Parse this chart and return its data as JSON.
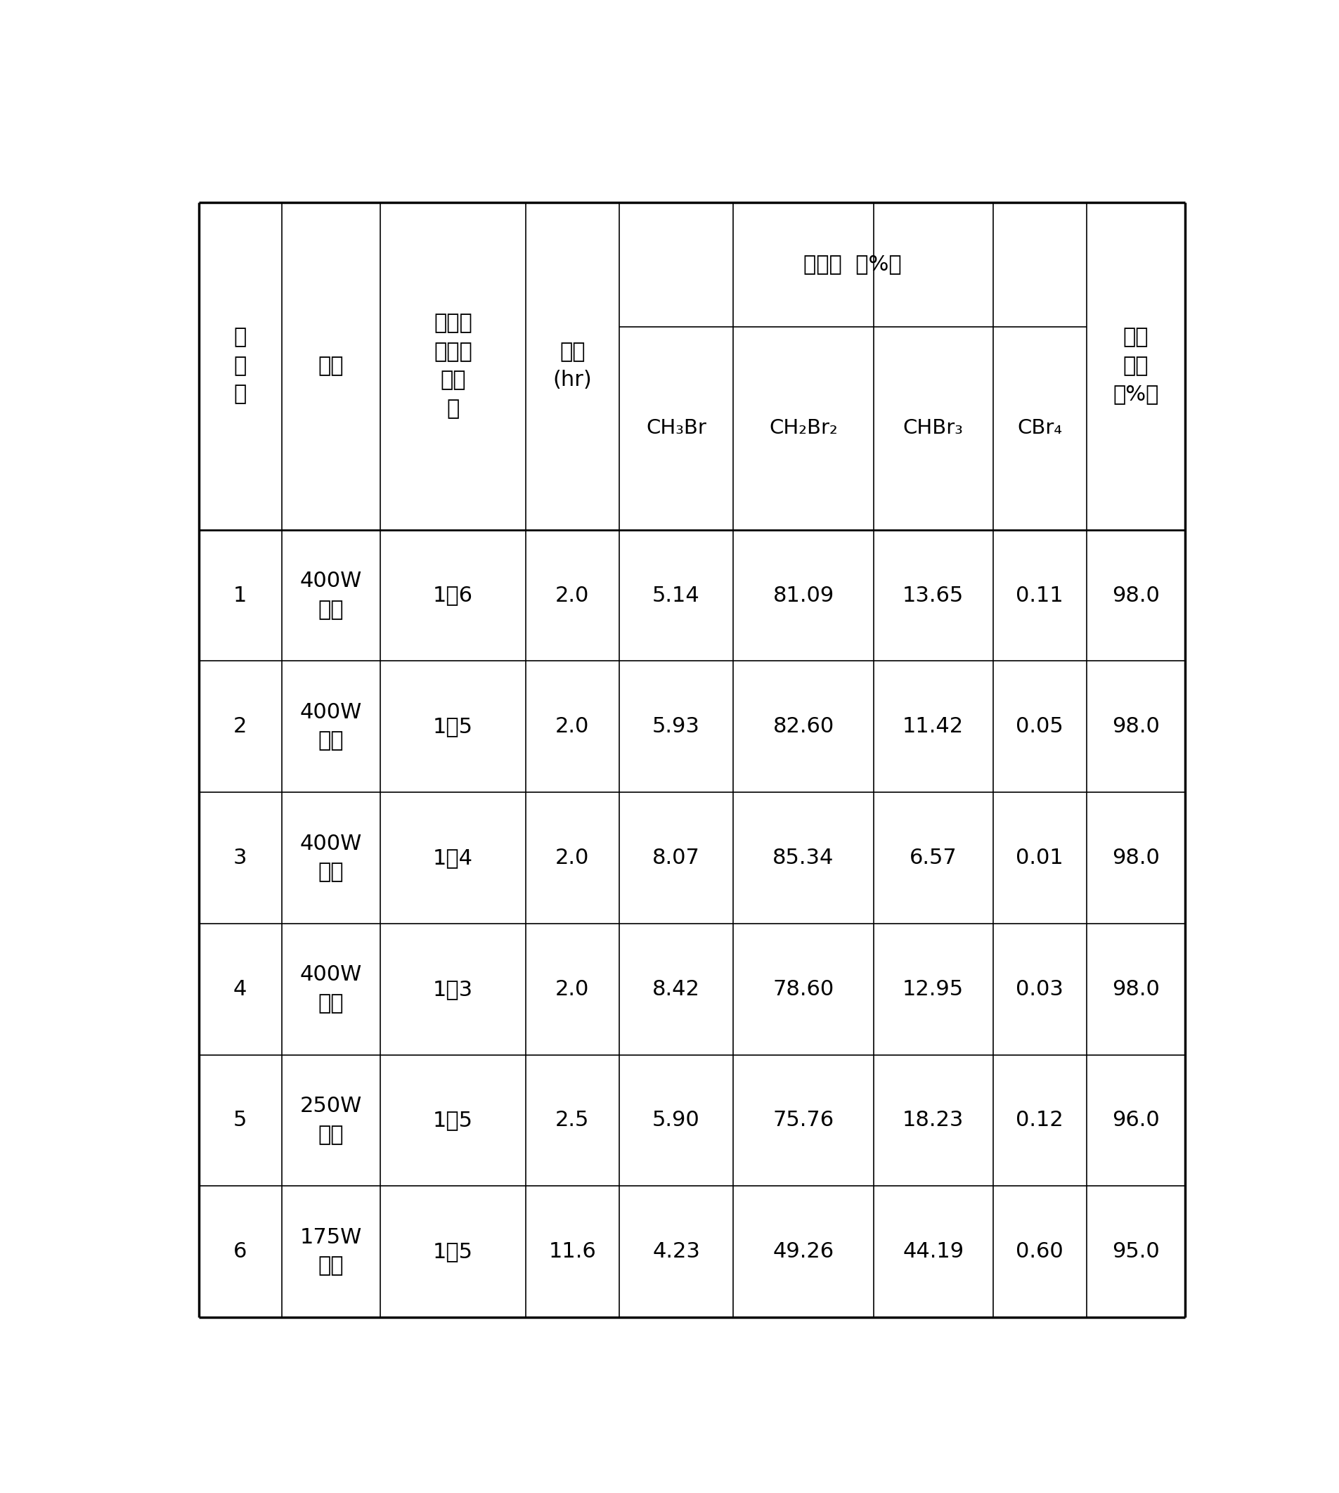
{
  "rows": [
    {
      "id": "1",
      "light": "400W\n孤灯",
      "ratio": "1：6",
      "time": "2.0",
      "ch3br": "5.14",
      "ch2br2": "81.09",
      "chbr3": "13.65",
      "cbr4": "0.11",
      "conv": "98.0"
    },
    {
      "id": "2",
      "light": "400W\n孤灯",
      "ratio": "1：5",
      "time": "2.0",
      "ch3br": "5.93",
      "ch2br2": "82.60",
      "chbr3": "11.42",
      "cbr4": "0.05",
      "conv": "98.0"
    },
    {
      "id": "3",
      "light": "400W\n孤灯",
      "ratio": "1：4",
      "time": "2.0",
      "ch3br": "8.07",
      "ch2br2": "85.34",
      "chbr3": "6.57",
      "cbr4": "0.01",
      "conv": "98.0"
    },
    {
      "id": "4",
      "light": "400W\n孤灯",
      "ratio": "1：3",
      "time": "2.0",
      "ch3br": "8.42",
      "ch2br2": "78.60",
      "chbr3": "12.95",
      "cbr4": "0.03",
      "conv": "98.0"
    },
    {
      "id": "5",
      "light": "250W\n孤灯",
      "ratio": "1：5",
      "time": "2.5",
      "ch3br": "5.90",
      "ch2br2": "75.76",
      "chbr3": "18.23",
      "cbr4": "0.12",
      "conv": "96.0"
    },
    {
      "id": "6",
      "light": "175W\n孤灯",
      "ratio": "1：5",
      "time": "11.6",
      "ch3br": "4.23",
      "ch2br2": "49.26",
      "chbr3": "44.19",
      "cbr4": "0.60",
      "conv": "95.0"
    }
  ],
  "header_h1": "选择性  （%）",
  "header_shishi": "实\n施\n例",
  "header_guangyuan": "光源",
  "header_ratio": "（渴／\n甲烷）\n摩尔\n比",
  "header_time": "时间\n(hr)",
  "header_conv": "渴转\n化率\n（%）",
  "header_ch3br": "CH₃Br",
  "header_ch2br2": "CH₂Br₂",
  "header_chbr3": "CHBr₃",
  "header_cbr4": "CBr₄",
  "bg_color": "#ffffff",
  "line_color": "#000000",
  "text_color": "#000000"
}
